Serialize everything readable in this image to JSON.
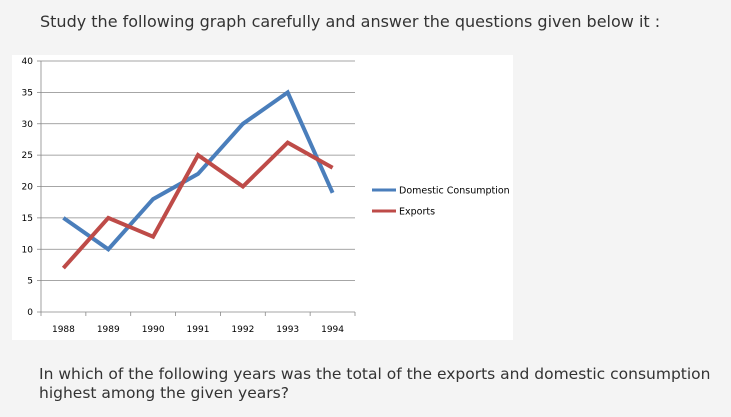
{
  "heading": "Study the following graph carefully and answer the questions given below it :",
  "question": "In which of the following years was the total of the exports and domestic consumption highest among the given years?",
  "colors": {
    "domestic": "#4a7ebb",
    "exports": "#be4b48",
    "grid": "#888888",
    "page_bg": "#f4f4f4",
    "chart_bg": "#ffffff"
  },
  "chart_data": {
    "type": "line",
    "title": "",
    "xlabel": "",
    "ylabel": "",
    "categories": [
      "1988",
      "1989",
      "1990",
      "1991",
      "1992",
      "1993",
      "1994"
    ],
    "ylim": [
      0,
      40
    ],
    "yticks": [
      0,
      5,
      10,
      15,
      20,
      25,
      30,
      35,
      40
    ],
    "grid": true,
    "legend_position": "right",
    "series": [
      {
        "name": "Domestic Consumption",
        "values": [
          15,
          10,
          18,
          22,
          30,
          35,
          19
        ]
      },
      {
        "name": "Exports",
        "values": [
          7,
          15,
          12,
          25,
          20,
          27,
          23
        ]
      }
    ]
  }
}
